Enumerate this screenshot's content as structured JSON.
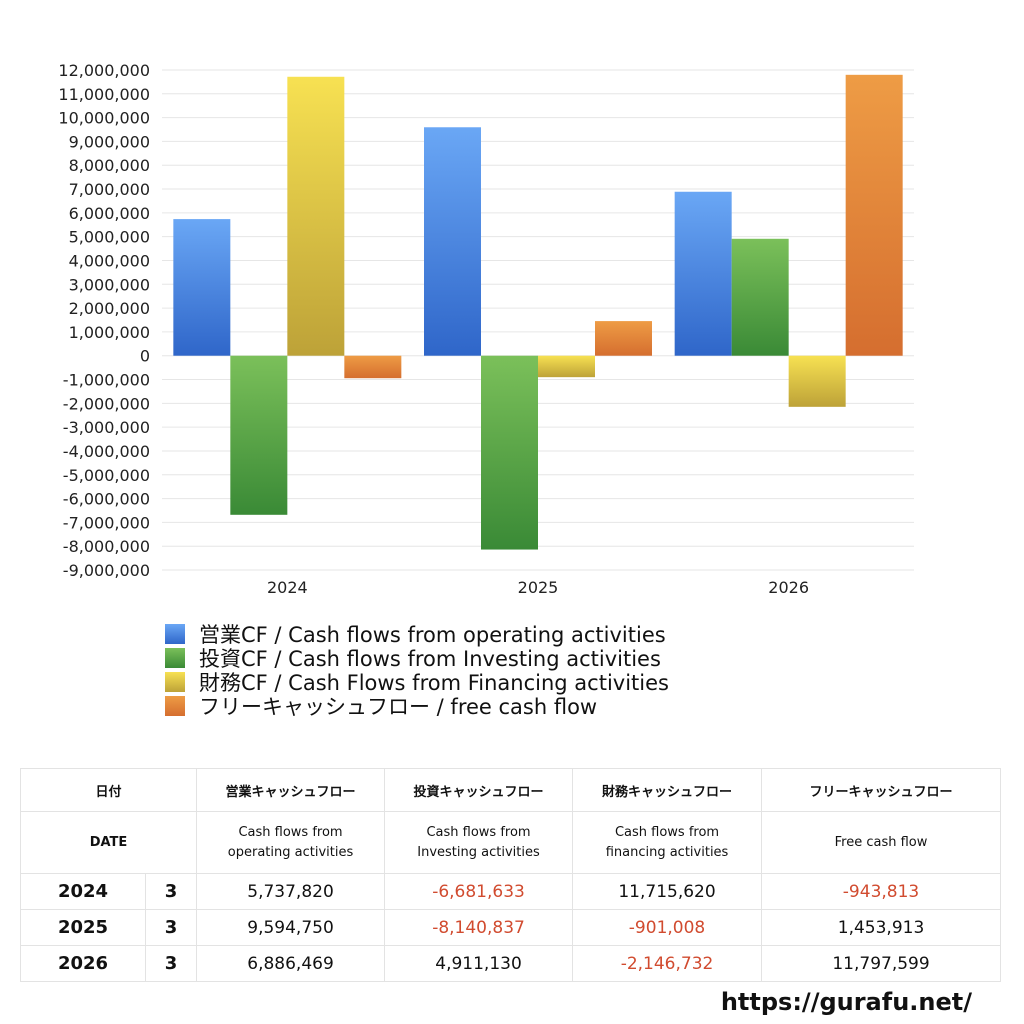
{
  "chart_data": {
    "type": "bar",
    "categories": [
      "2024",
      "2025",
      "2026"
    ],
    "series": [
      {
        "name": "営業CF / Cash flows from operating activities",
        "values": [
          5737820,
          9594750,
          6886469
        ],
        "color": "#4a86e8"
      },
      {
        "name": "投資CF / Cash flows from Investing activities",
        "values": [
          -6681633,
          -8140837,
          4911130
        ],
        "color": "#5aa845"
      },
      {
        "name": "財務CF / Cash Flows from Financing activities",
        "values": [
          11715620,
          -901008,
          -2146732
        ],
        "color": "#e8cf45"
      },
      {
        "name": "フリーキャッシュフロー / free cash flow",
        "values": [
          -943813,
          1453913,
          11797599
        ],
        "color": "#e2833a"
      }
    ],
    "ylim": [
      -9000000,
      12000000
    ],
    "yticks": [
      "12,000,000",
      "11,000,000",
      "10,000,000",
      "9,000,000",
      "8,000,000",
      "7,000,000",
      "6,000,000",
      "5,000,000",
      "4,000,000",
      "3,000,000",
      "2,000,000",
      "1,000,000",
      "0",
      "-1,000,000",
      "-2,000,000",
      "-3,000,000",
      "-4,000,000",
      "-5,000,000",
      "-6,000,000",
      "-7,000,000",
      "-8,000,000",
      "-9,000,000"
    ],
    "grid": true,
    "legend": "bottom"
  },
  "table": {
    "headers": [
      "日付",
      "営業キャッシュフロー",
      "投資キャッシュフロー",
      "財務キャッシュフロー",
      "フリーキャッシュフロー"
    ],
    "subheaders": {
      "date": "DATE",
      "operating": [
        "Cash flows from",
        "operating activities"
      ],
      "investing": [
        "Cash flows from",
        "Investing activities"
      ],
      "financing": [
        "Cash flows from",
        "financing activities"
      ],
      "free": "Free cash flow"
    },
    "rows": [
      {
        "year": "2024",
        "month": "3",
        "operating": "5,737,820",
        "investing": "-6,681,633",
        "financing": "11,715,620",
        "free": "-943,813"
      },
      {
        "year": "2025",
        "month": "3",
        "operating": "9,594,750",
        "investing": "-8,140,837",
        "financing": "-901,008",
        "free": "1,453,913"
      },
      {
        "year": "2026",
        "month": "3",
        "operating": "6,886,469",
        "investing": "4,911,130",
        "financing": "-2,146,732",
        "free": "11,797,599"
      }
    ]
  },
  "footer_url": "https://gurafu.net/"
}
